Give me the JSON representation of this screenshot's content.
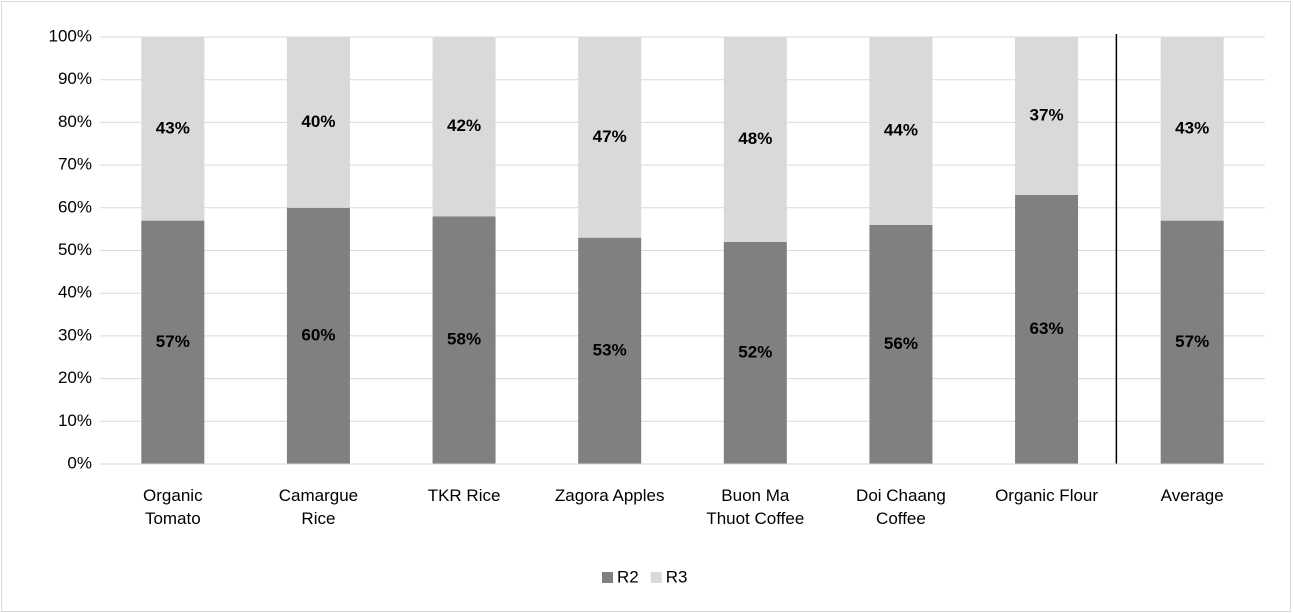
{
  "chart_data": {
    "type": "stacked_bar",
    "categories": [
      "Organic\nTomato",
      "Camargue\nRice",
      "TKR Rice",
      "Zagora Apples",
      "Buon Ma\nThuot Coffee",
      "Doi Chaang\nCoffee",
      "Organic Flour",
      "Average"
    ],
    "series": [
      {
        "name": "R2",
        "color": "#808080",
        "values": [
          57,
          60,
          58,
          53,
          52,
          56,
          63,
          57
        ],
        "value_labels": [
          "57%",
          "60%",
          "58%",
          "53%",
          "52%",
          "56%",
          "63%",
          "57%"
        ]
      },
      {
        "name": "R3",
        "color": "#d9d9d9",
        "values": [
          43,
          40,
          42,
          47,
          48,
          44,
          37,
          43
        ],
        "value_labels": [
          "43%",
          "40%",
          "42%",
          "47%",
          "48%",
          "44%",
          "37%",
          "43%"
        ]
      }
    ],
    "ylim": [
      0,
      100
    ],
    "yticks": [
      {
        "value": 0,
        "label": "0%"
      },
      {
        "value": 10,
        "label": "10%"
      },
      {
        "value": 20,
        "label": "20%"
      },
      {
        "value": 30,
        "label": "30%"
      },
      {
        "value": 40,
        "label": "40%"
      },
      {
        "value": 50,
        "label": "50%"
      },
      {
        "value": 60,
        "label": "60%"
      },
      {
        "value": 70,
        "label": "70%"
      },
      {
        "value": 80,
        "label": "80%"
      },
      {
        "value": 90,
        "label": "90%"
      },
      {
        "value": 100,
        "label": "100%"
      }
    ],
    "grid": true,
    "legend": "bottom"
  }
}
